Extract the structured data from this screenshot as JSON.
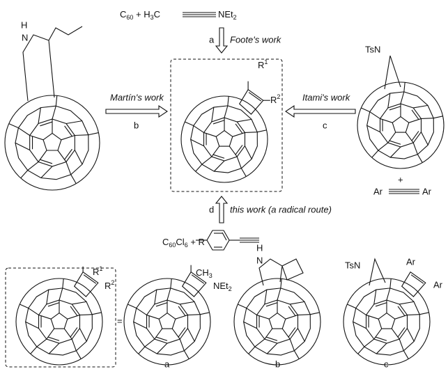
{
  "top": {
    "text": [
      "C",
      "60",
      " + H",
      "3",
      "C"
    ],
    "amine": [
      "NEt",
      "2"
    ]
  },
  "arrow_a": {
    "label": "a",
    "work": "Foote's work"
  },
  "arrow_b": {
    "label": "b",
    "work": "Martín's work"
  },
  "arrow_c": {
    "label": "c",
    "work": "Itami's work"
  },
  "arrow_d": {
    "label": "d",
    "work": "this work (a radical route)"
  },
  "bottom_reagent": {
    "text": [
      "C",
      "60",
      "Cl",
      "6",
      " + R"
    ]
  },
  "left_compound": {
    "h": "H",
    "n": "N"
  },
  "product": {
    "r1": [
      "R",
      "1"
    ],
    "r2": [
      "R",
      "2"
    ]
  },
  "right_compound": {
    "tsn": "TsN",
    "plus": "+",
    "ar_left": "Ar",
    "ar_right": "Ar"
  },
  "bottom_row": {
    "general": {
      "r1": [
        "R",
        "1"
      ],
      "r2": [
        "R",
        "2"
      ]
    },
    "equals": "=",
    "a": {
      "substituent": [
        "CH",
        "3"
      ],
      "amine": [
        "NEt",
        "2"
      ],
      "label": "a"
    },
    "b": {
      "h": "H",
      "n": "N",
      "label": "b"
    },
    "c": {
      "tsn": "TsN",
      "ar_top": "Ar",
      "ar_right": "Ar",
      "label": "c"
    }
  }
}
